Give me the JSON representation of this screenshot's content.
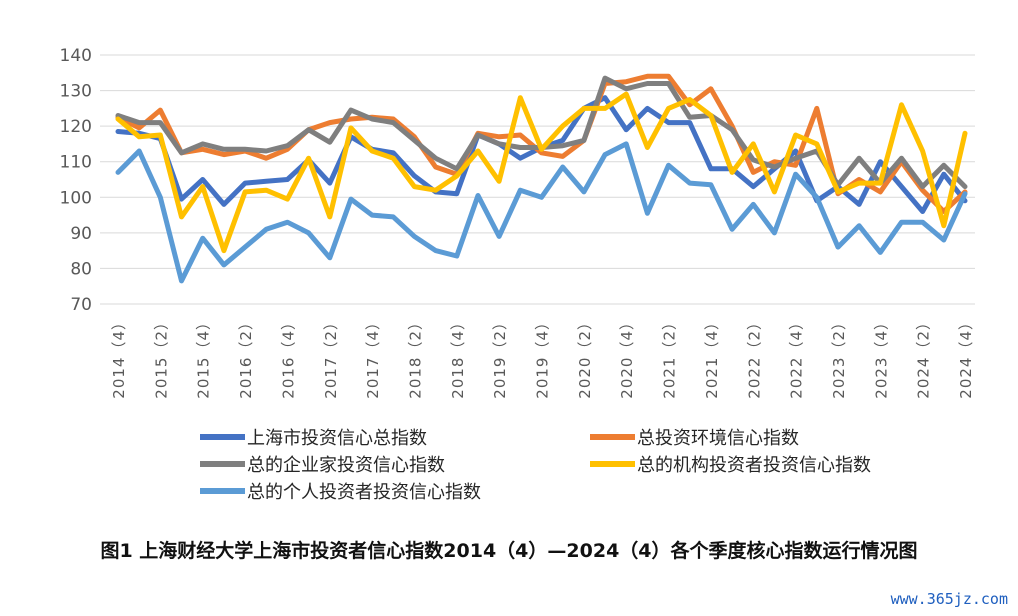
{
  "chart_data": {
    "type": "line",
    "title": "",
    "xlabel": "",
    "ylabel": "",
    "ylim": [
      70,
      140
    ],
    "yticks": [
      70,
      80,
      90,
      100,
      110,
      120,
      130,
      140
    ],
    "grid": "horizontal",
    "legend_position": "bottom",
    "x": [
      "2014（4）",
      "2015（1）",
      "2015（2）",
      "2015（3）",
      "2015（4）",
      "2016（1）",
      "2016（2）",
      "2016（3）",
      "2016（4）",
      "2017（1）",
      "2017（2）",
      "2017（3）",
      "2017（4）",
      "2018（1）",
      "2018（2）",
      "2018（3）",
      "2018（4）",
      "2019（1）",
      "2019（2）",
      "2019（3）",
      "2019（4）",
      "2020（1）",
      "2020（2）",
      "2020（3）",
      "2020（4）",
      "2021（1）",
      "2021（2）",
      "2021（3）",
      "2021（4）",
      "2022（1）",
      "2022（2）",
      "2022（3）",
      "2022（4）",
      "2023（1）",
      "2023（2）",
      "2023（3）",
      "2023（4）",
      "2024（1）",
      "2024（2）",
      "2024（3）",
      "2024（4）"
    ],
    "x_tick_labels": [
      "2014（4）",
      "2015（2）",
      "2015（4）",
      "2016（2）",
      "2016（4）",
      "2017（2）",
      "2017（4）",
      "2018（2）",
      "2018（4）",
      "2019（2）",
      "2019（4）",
      "2020（2）",
      "2020（4）",
      "2021（2）",
      "2021（4）",
      "2022（2）",
      "2022（4）",
      "2023（2）",
      "2023（4）",
      "2024（2）",
      "2024（4）"
    ],
    "series": [
      {
        "name": "上海市投资信心总指数",
        "color": "#4472c4",
        "values": [
          118.5,
          118,
          116.5,
          99.5,
          105,
          98,
          104,
          104.5,
          105,
          110.5,
          104,
          117,
          113.5,
          112.5,
          106,
          101.5,
          101,
          117.5,
          115,
          111,
          114,
          116,
          125,
          128,
          119,
          125,
          121,
          121,
          108,
          108,
          103,
          108,
          113,
          99,
          103,
          98,
          110,
          103,
          96,
          106.5,
          99
        ]
      },
      {
        "name": "总投资环境信心指数",
        "color": "#ed7d31",
        "values": [
          122.5,
          119.5,
          124.5,
          112.5,
          113.5,
          112,
          113,
          111,
          113.5,
          119,
          121,
          122,
          122.5,
          122,
          117,
          108.5,
          106.5,
          118,
          117,
          117.5,
          112.5,
          111.5,
          116,
          132,
          132.5,
          134,
          134,
          126,
          130.5,
          120,
          107,
          110,
          109,
          125,
          101,
          105,
          101.5,
          110,
          102,
          96,
          101.5
        ]
      },
      {
        "name": "总的企业家投资信心指数",
        "color": "#7f7f7f",
        "values": [
          123,
          121,
          121,
          112.5,
          115,
          113.5,
          113.5,
          113,
          114.5,
          119,
          115.5,
          124.5,
          122,
          121,
          116,
          111,
          108,
          117.5,
          115,
          114,
          114,
          114.5,
          116,
          133.5,
          130.5,
          132,
          132,
          122.5,
          123,
          119,
          110.5,
          108.5,
          111,
          113,
          103.5,
          111,
          104,
          111,
          103,
          109,
          103
        ]
      },
      {
        "name": "总的机构投资者投资信心指数",
        "color": "#ffc000",
        "values": [
          122,
          117,
          117.5,
          94.5,
          103,
          85,
          101.5,
          102,
          99.5,
          111,
          94.5,
          119.5,
          113,
          111,
          103,
          102,
          106,
          113,
          104.5,
          128,
          113.5,
          120,
          125,
          125,
          129,
          114,
          125,
          127.5,
          123,
          107,
          115,
          101.5,
          117.5,
          115,
          101.5,
          104,
          104,
          126,
          113,
          92,
          118
        ]
      },
      {
        "name": "总的个人投资者投资信心指数",
        "color": "#5b9bd5",
        "values": [
          107,
          113,
          100,
          76.5,
          88.5,
          81,
          86,
          91,
          93,
          90,
          83,
          99.5,
          95,
          94.5,
          89,
          85,
          83.5,
          100.5,
          89,
          102,
          100,
          108.5,
          101.5,
          112,
          115,
          95.5,
          109,
          104,
          103.5,
          91,
          98,
          90,
          106.5,
          100,
          86,
          92,
          84.5,
          93,
          93,
          88,
          101
        ]
      }
    ]
  },
  "caption": "图1 上海财经大学上海市投资者信心指数2014（4）—2024（4）各个季度核心指数运行情况图",
  "watermark": "www.365jz.com"
}
